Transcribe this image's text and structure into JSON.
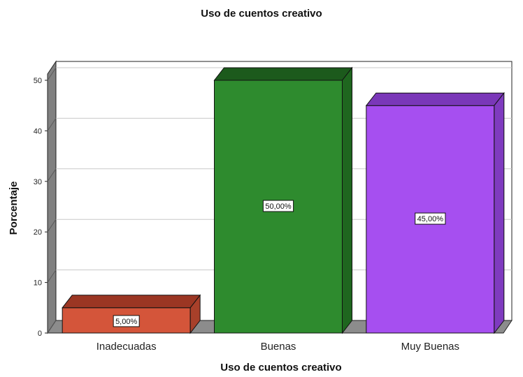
{
  "chart_data": {
    "type": "bar",
    "title": "Uso de cuentos creativo",
    "xlabel": "Uso de cuentos creativo",
    "ylabel": "Porcentaje",
    "categories": [
      "Inadecuadas",
      "Buenas",
      "Muy Buenas"
    ],
    "values": [
      5,
      50,
      45
    ],
    "data_labels": [
      "5,00%",
      "50,00%",
      "45,00%"
    ],
    "y_ticks": [
      "0",
      "10",
      "20",
      "30",
      "40",
      "50"
    ],
    "ylim": [
      0,
      50
    ],
    "grid": true,
    "style": "3d",
    "colors": {
      "bars": [
        {
          "front": "#d4553a",
          "top": "#9b3623",
          "side": "#a8402a"
        },
        {
          "front": "#2e8b2e",
          "top": "#1c5a1c",
          "side": "#1f661f"
        },
        {
          "front": "#a64ff0",
          "top": "#7a37b8",
          "side": "#7f3bbf"
        }
      ],
      "wall": "#808080",
      "floor": "#8c8c8c",
      "grid": "#c8c8c8"
    }
  }
}
